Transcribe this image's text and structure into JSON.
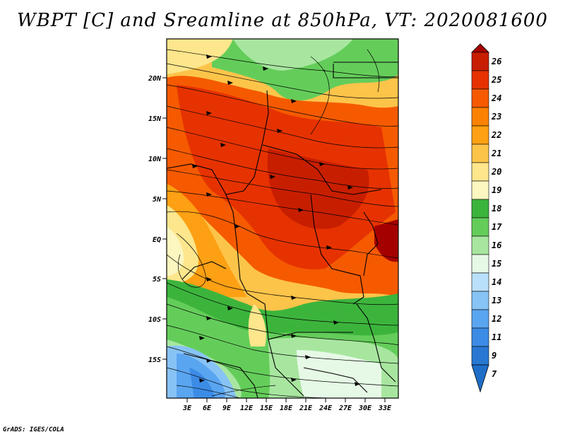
{
  "title": "WBPT [C] and Sreamline at 850hPa, VT: 2020081600",
  "credit": "GrADS: IGES/COLA",
  "lat_labels": [
    "20N",
    "15N",
    "10N",
    "5N",
    "EQ",
    "5S",
    "10S",
    "15S"
  ],
  "lon_labels": [
    "3E",
    "6E",
    "9E",
    "12E",
    "15E",
    "18E",
    "21E",
    "24E",
    "27E",
    "30E",
    "33E"
  ],
  "colorbar": {
    "levels": [
      "26",
      "25",
      "24",
      "23",
      "22",
      "21",
      "20",
      "19",
      "18",
      "17",
      "16",
      "15",
      "14",
      "13",
      "12",
      "11",
      "9",
      "7"
    ],
    "colors": [
      "#a50000",
      "#c81e00",
      "#e63200",
      "#f55a00",
      "#fa8200",
      "#fda014",
      "#fdc44a",
      "#fde68c",
      "#fcf6c0",
      "#3cb43c",
      "#64cd5a",
      "#a8e6a0",
      "#e6f9e6",
      "#b9e0fa",
      "#87c3f5",
      "#5aa5f0",
      "#3c8ce6",
      "#2878d2",
      "#1e6ec8"
    ]
  },
  "palette": {
    "hot": "#c81e00",
    "warm": "#f55a00",
    "orange": "#fda014",
    "tan": "#fdc44a",
    "pale": "#fde68c",
    "green": "#64cd5a",
    "lightgreen": "#a8e6a0",
    "blue": "#87c3f5"
  }
}
